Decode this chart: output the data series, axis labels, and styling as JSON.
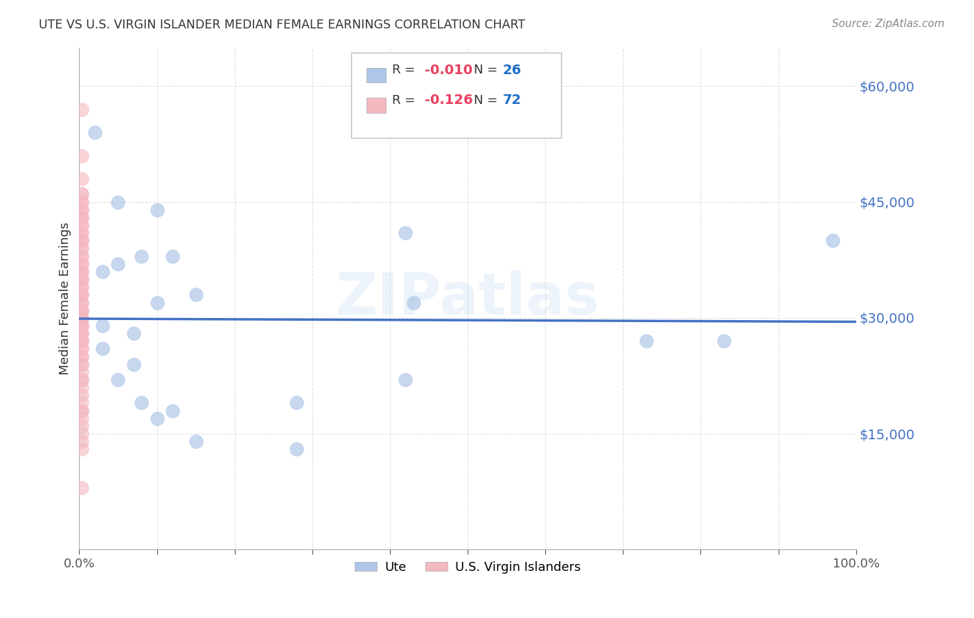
{
  "title": "UTE VS U.S. VIRGIN ISLANDER MEDIAN FEMALE EARNINGS CORRELATION CHART",
  "source": "Source: ZipAtlas.com",
  "ylabel": "Median Female Earnings",
  "xlim": [
    0,
    1.0
  ],
  "ylim": [
    0,
    65000
  ],
  "yticks": [
    15000,
    30000,
    45000,
    60000
  ],
  "ytick_labels": [
    "$15,000",
    "$30,000",
    "$45,000",
    "$60,000"
  ],
  "background_color": "#ffffff",
  "watermark": "ZIPatlas",
  "ute_scatter_x": [
    0.02,
    0.05,
    0.1,
    0.08,
    0.05,
    0.03,
    0.03,
    0.07,
    0.1,
    0.15,
    0.42,
    0.43,
    0.42,
    0.73,
    0.83,
    0.97,
    0.05,
    0.08,
    0.1,
    0.12,
    0.15,
    0.28,
    0.28,
    0.07,
    0.03,
    0.12
  ],
  "ute_scatter_y": [
    54000,
    45000,
    44000,
    38000,
    37000,
    36000,
    29000,
    28000,
    32000,
    33000,
    41000,
    32000,
    22000,
    27000,
    27000,
    40000,
    22000,
    19000,
    17000,
    18000,
    14000,
    13000,
    19000,
    24000,
    26000,
    38000
  ],
  "vi_scatter_x": [
    0.003,
    0.003,
    0.003,
    0.003,
    0.003,
    0.003,
    0.003,
    0.003,
    0.003,
    0.003,
    0.003,
    0.003,
    0.003,
    0.003,
    0.003,
    0.003,
    0.003,
    0.003,
    0.003,
    0.003,
    0.003,
    0.003,
    0.003,
    0.003,
    0.003,
    0.003,
    0.003,
    0.003,
    0.003,
    0.003,
    0.003,
    0.003,
    0.003,
    0.003,
    0.003,
    0.003,
    0.003,
    0.003,
    0.003,
    0.003,
    0.003,
    0.003,
    0.003,
    0.003,
    0.003,
    0.003,
    0.003,
    0.003,
    0.003,
    0.003,
    0.003,
    0.003,
    0.003,
    0.003,
    0.003,
    0.003,
    0.003,
    0.003,
    0.003,
    0.003,
    0.003,
    0.003,
    0.003,
    0.003,
    0.003,
    0.003,
    0.003,
    0.003,
    0.003,
    0.003,
    0.003,
    0.003
  ],
  "vi_scatter_y": [
    57000,
    51000,
    48000,
    46000,
    46000,
    45000,
    45000,
    44000,
    44000,
    43000,
    43000,
    43000,
    42000,
    42000,
    41000,
    41000,
    40000,
    40000,
    40000,
    39000,
    39000,
    38000,
    38000,
    37000,
    37000,
    36000,
    36000,
    36000,
    35000,
    35000,
    35000,
    34000,
    34000,
    33000,
    33000,
    33000,
    32000,
    32000,
    31000,
    31000,
    31000,
    30000,
    30000,
    29000,
    29000,
    29000,
    28000,
    28000,
    28000,
    27000,
    27000,
    27000,
    26000,
    26000,
    25000,
    25000,
    24000,
    24000,
    23000,
    22000,
    22000,
    21000,
    20000,
    19000,
    18000,
    18000,
    17000,
    16000,
    15000,
    14000,
    13000,
    8000
  ],
  "ute_line_color": "#4472c4",
  "vi_line_color": "#e8a0a8",
  "ute_dot_color": "#aec6e8",
  "vi_dot_color": "#f4b8c1",
  "ute_R": -0.01,
  "vi_R": -0.126,
  "grid_color": "#d8d8d8",
  "legend_r_color": "#e84060",
  "legend_n_color": "#1f6fc4",
  "text_dark": "#333333"
}
